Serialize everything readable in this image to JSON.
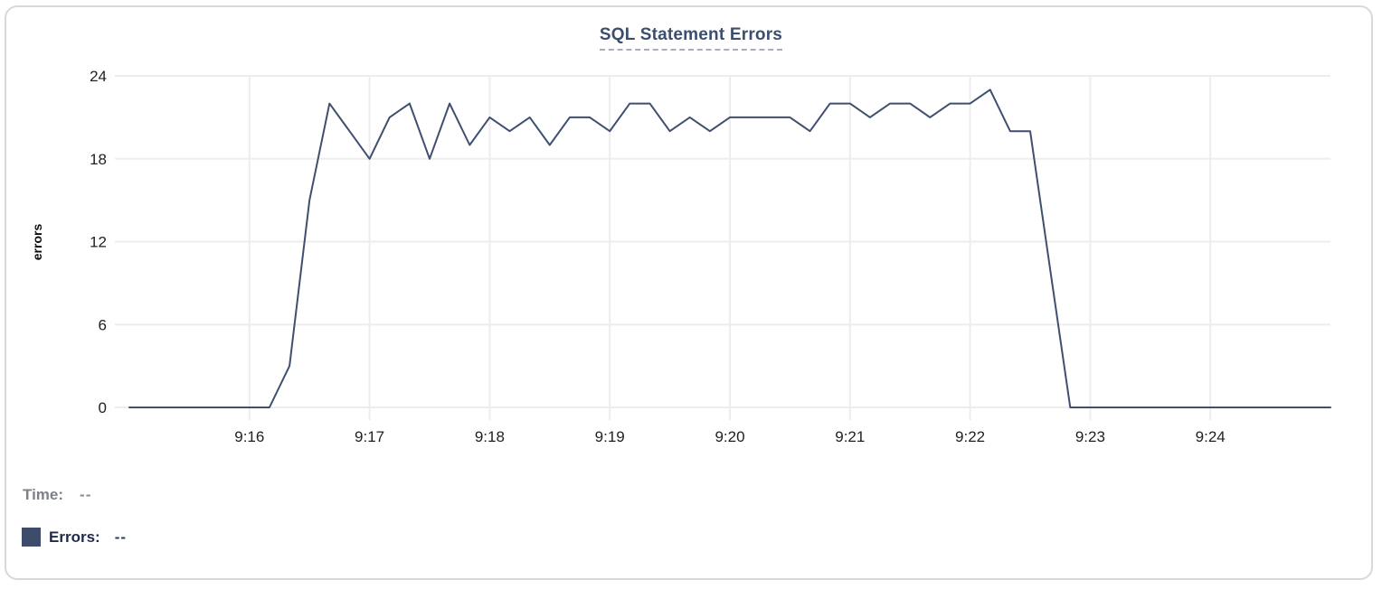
{
  "chart_data": {
    "type": "line",
    "title": "SQL Statement Errors",
    "ylabel": "errors",
    "xlabel": "",
    "ylim": [
      0,
      24
    ],
    "y_ticks": [
      0,
      6,
      12,
      18,
      24
    ],
    "x_range": [
      "9:15:00",
      "9:25:00"
    ],
    "x_tick_labels": [
      "9:16",
      "9:17",
      "9:18",
      "9:19",
      "9:20",
      "9:21",
      "9:22",
      "9:23",
      "9:24"
    ],
    "interval_seconds": 10,
    "grid": true,
    "legend_position": "bottom-left",
    "series": [
      {
        "name": "Errors",
        "color": "#3f4f70",
        "start": "9:15:00",
        "values": [
          0,
          0,
          0,
          0,
          0,
          0,
          0,
          0,
          3,
          15,
          22,
          20,
          18,
          21,
          22,
          18,
          22,
          19,
          21,
          20,
          21,
          19,
          21,
          21,
          20,
          22,
          22,
          20,
          21,
          20,
          21,
          21,
          21,
          21,
          20,
          22,
          22,
          21,
          22,
          22,
          21,
          22,
          22,
          23,
          20,
          20,
          10,
          0,
          0,
          0,
          0,
          0,
          0,
          0,
          0,
          0,
          0,
          0,
          0,
          0,
          0
        ]
      }
    ]
  },
  "legend": {
    "time_label": "Time:",
    "time_value": "--",
    "errors_label": "Errors:",
    "errors_value": "--"
  },
  "colors": {
    "line": "#3f4f70",
    "grid": "#ededee",
    "tick_text": "#1f1f1f",
    "axis_title_text": "#0c0c0c",
    "title_text": "#3c4e70",
    "title_underline": "#a6aebe",
    "legend_swatch": "#3d4c6b",
    "time_text": "#7d8086",
    "errors_text": "#1d2a4e",
    "card_border": "#d7d8da"
  }
}
